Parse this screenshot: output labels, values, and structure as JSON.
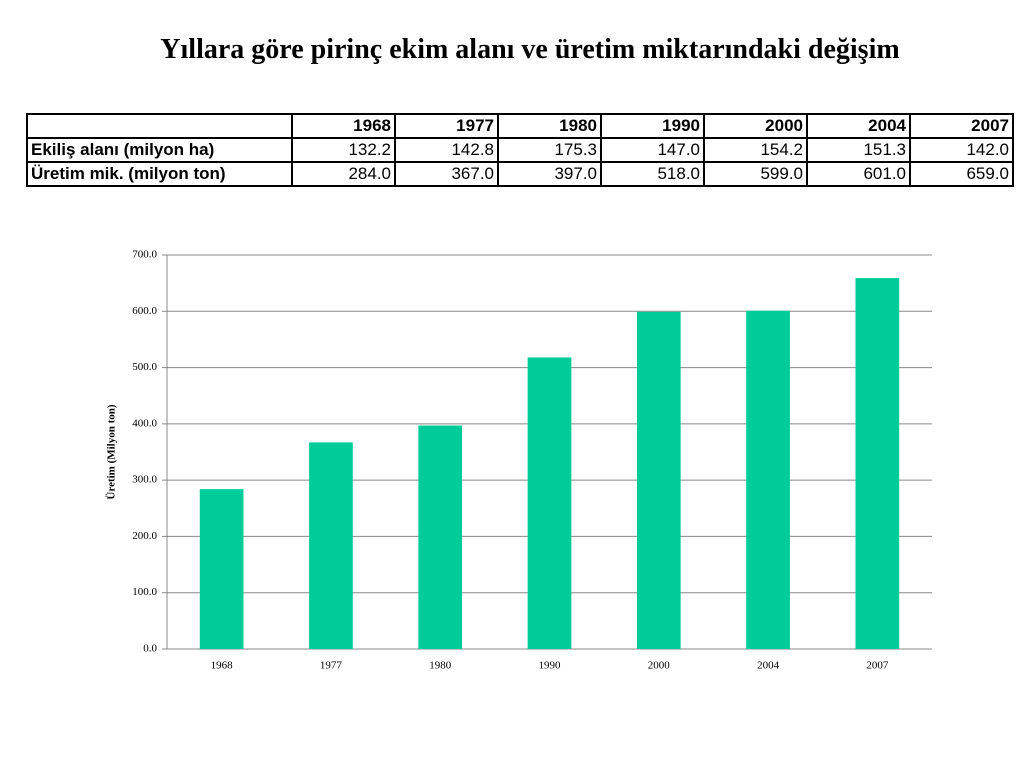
{
  "title": "Yıllara göre pirinç ekim alanı ve üretim miktarındaki değişim",
  "table": {
    "columns": [
      "1968",
      "1977",
      "1980",
      "1990",
      "2000",
      "2004",
      "2007"
    ],
    "rows": [
      {
        "label": "Ekiliş alanı (milyon ha)",
        "cells": [
          "132.2",
          "142.8",
          "175.3",
          "147.0",
          "154.2",
          "151.3",
          "142.0"
        ]
      },
      {
        "label": "Üretim mik. (milyon ton)",
        "cells": [
          "284.0",
          "367.0",
          "397.0",
          "518.0",
          "599.0",
          "601.0",
          "659.0"
        ]
      }
    ]
  },
  "chart_data": {
    "type": "bar",
    "ylabel": "Üretim (Milyon ton)",
    "categories": [
      "1968",
      "1977",
      "1980",
      "1990",
      "2000",
      "2004",
      "2007"
    ],
    "values": [
      284,
      367,
      397,
      518,
      599,
      601,
      659
    ],
    "color": "#00cc99",
    "ylim": [
      0,
      700
    ],
    "yticks": [
      {
        "value": 0,
        "label": "0.0"
      },
      {
        "value": 100,
        "label": "100.0"
      },
      {
        "value": 200,
        "label": "200.0"
      },
      {
        "value": 300,
        "label": "300.0"
      },
      {
        "value": 400,
        "label": "400.0"
      },
      {
        "value": 500,
        "label": "500.0"
      },
      {
        "value": 600,
        "label": "600.0"
      },
      {
        "value": 700,
        "label": "700.0"
      }
    ],
    "grid": true
  }
}
